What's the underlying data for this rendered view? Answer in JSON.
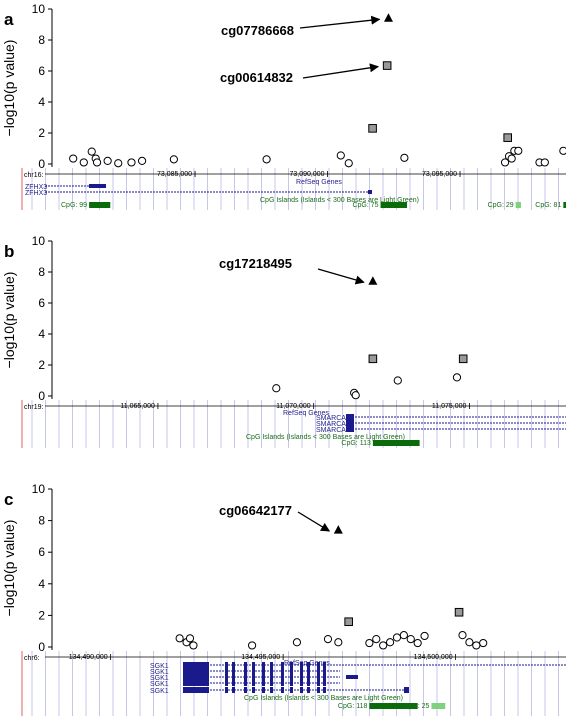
{
  "ylabel": "−log10(p value)",
  "colors": {
    "grid": "#b9b9e6",
    "gene": "#1a1a8c",
    "cpg_dark": "#0a6b0a",
    "cpg_light": "#7fd17f",
    "text_blue": "#23238c",
    "text_green": "#1a6b1a",
    "red_line": "#e06060"
  },
  "chart_data": [
    {
      "panel": "a",
      "type": "scatter",
      "ylim": [
        0,
        10
      ],
      "yticks": [
        0,
        2,
        4,
        6,
        8,
        10
      ],
      "xlim": [
        73079600,
        73099000
      ],
      "chrom": "chr16:",
      "xticks": [
        {
          "pos": 73085000,
          "label": "73,085,000"
        },
        {
          "pos": 73090000,
          "label": "73,090,000"
        },
        {
          "pos": 73095000,
          "label": "73,095,000"
        }
      ],
      "series": [
        {
          "marker": "circle",
          "points": [
            [
              73080400,
              0.35
            ],
            [
              73080800,
              0.1
            ],
            [
              73081100,
              0.8
            ],
            [
              73081250,
              0.35
            ],
            [
              73081300,
              0.1
            ],
            [
              73081700,
              0.2
            ],
            [
              73082100,
              0.05
            ],
            [
              73082600,
              0.1
            ],
            [
              73083000,
              0.2
            ],
            [
              73084200,
              0.3
            ],
            [
              73087700,
              0.3
            ],
            [
              73090500,
              0.55
            ],
            [
              73090800,
              0.05
            ],
            [
              73092900,
              0.4
            ],
            [
              73096700,
              0.1
            ],
            [
              73096850,
              0.5
            ],
            [
              73096950,
              0.35
            ],
            [
              73097050,
              0.85
            ],
            [
              73097200,
              0.85
            ],
            [
              73098000,
              0.1
            ],
            [
              73098200,
              0.1
            ],
            [
              73098900,
              0.85
            ]
          ]
        },
        {
          "marker": "square",
          "points": [
            [
              73091700,
              2.3
            ],
            [
              73092250,
              6.35
            ],
            [
              73096800,
              1.7
            ]
          ]
        },
        {
          "marker": "triangle",
          "points": [
            [
              73092300,
              9.4
            ]
          ]
        }
      ],
      "annotations": [
        {
          "label": "cg07786668",
          "target": [
            73092300,
            9.4
          ]
        },
        {
          "label": "cg00614832",
          "target": [
            73092250,
            6.35
          ]
        }
      ],
      "tracks": {
        "refseq_title": "RefSeq Genes",
        "genes": [
          "ZFHX3",
          "ZFHX3"
        ],
        "cpg_title": "CpG Islands (Islands < 300 Bases are Light Green)",
        "cpg": [
          {
            "label": "CpG: 99",
            "start": 73081000,
            "end": 73081800,
            "light": false
          },
          {
            "label": "CpG: 75",
            "start": 73092000,
            "end": 73093000,
            "light": false
          },
          {
            "label": "CpG: 29",
            "start": 73097100,
            "end": 73097300,
            "light": true
          },
          {
            "label": "CpG: 81",
            "start": 73098900,
            "end": 73099000,
            "light": false
          }
        ]
      }
    },
    {
      "panel": "b",
      "type": "scatter",
      "ylim": [
        0,
        10
      ],
      "yticks": [
        0,
        2,
        4,
        6,
        8,
        10
      ],
      "xlim": [
        11061600,
        11078100
      ],
      "chrom": "chr19:",
      "xticks": [
        {
          "pos": 11065000,
          "label": "11,065,000"
        },
        {
          "pos": 11070000,
          "label": "11,070,000"
        },
        {
          "pos": 11075000,
          "label": "11,075,000"
        }
      ],
      "series": [
        {
          "marker": "circle",
          "points": [
            [
              11068800,
              0.5
            ],
            [
              11071300,
              0.2
            ],
            [
              11071350,
              0.05
            ],
            [
              11072700,
              1.0
            ],
            [
              11074600,
              1.2
            ]
          ]
        },
        {
          "marker": "square",
          "points": [
            [
              11071900,
              2.4
            ],
            [
              11074800,
              2.4
            ]
          ]
        },
        {
          "marker": "triangle",
          "points": [
            [
              11071900,
              7.4
            ]
          ]
        }
      ],
      "annotations": [
        {
          "label": "cg17218495",
          "target": [
            11071900,
            7.4
          ]
        }
      ],
      "tracks": {
        "refseq_title": "RefSeq Genes",
        "genes": [
          "SMARCA4",
          "SMARCA4",
          "SMARCA4"
        ],
        "cpg_title": "CpG Islands (Islands < 300 Bases are Light Green)",
        "cpg": [
          {
            "label": "CpG: 113",
            "start": 11071900,
            "end": 11073400,
            "light": false
          }
        ]
      }
    },
    {
      "panel": "c",
      "type": "scatter",
      "ylim": [
        0,
        10
      ],
      "yticks": [
        0,
        2,
        4,
        6,
        8,
        10
      ],
      "xlim": [
        134488300,
        134503200
      ],
      "chrom": "chr6:",
      "xticks": [
        {
          "pos": 134490000,
          "label": "134,490,000"
        },
        {
          "pos": 134495000,
          "label": "134,495,000"
        },
        {
          "pos": 134500000,
          "label": "134,500,000"
        }
      ],
      "series": [
        {
          "marker": "circle",
          "points": [
            [
              134492000,
              0.55
            ],
            [
              134492200,
              0.3
            ],
            [
              134492300,
              0.55
            ],
            [
              134492400,
              0.1
            ],
            [
              134494100,
              0.1
            ],
            [
              134495400,
              0.3
            ],
            [
              134496300,
              0.5
            ],
            [
              134496600,
              0.3
            ],
            [
              134497500,
              0.25
            ],
            [
              134497700,
              0.5
            ],
            [
              134497900,
              0.1
            ],
            [
              134498100,
              0.3
            ],
            [
              134498300,
              0.6
            ],
            [
              134498500,
              0.75
            ],
            [
              134498700,
              0.5
            ],
            [
              134498900,
              0.25
            ],
            [
              134499100,
              0.7
            ],
            [
              134500200,
              0.75
            ],
            [
              134500400,
              0.3
            ],
            [
              134500600,
              0.1
            ],
            [
              134500800,
              0.25
            ]
          ]
        },
        {
          "marker": "square",
          "points": [
            [
              134496900,
              1.6
            ],
            [
              134500100,
              2.2
            ]
          ]
        },
        {
          "marker": "triangle",
          "points": [
            [
              134496600,
              7.4
            ]
          ]
        }
      ],
      "annotations": [
        {
          "label": "cg06642177",
          "target": [
            134496600,
            7.4
          ]
        }
      ],
      "tracks": {
        "refseq_title": "RefSeq Genes",
        "genes": [
          "SGK1",
          "SGK1",
          "SGK1",
          "SGK1",
          "SGK1"
        ],
        "cpg_title": "CpG Islands (Islands < 300 Bases are Light Green)",
        "cpg": [
          {
            "label": "CpG: 118",
            "start": 134497500,
            "end": 134498900,
            "light": false
          },
          {
            "label": "CpG: 25",
            "start": 134499300,
            "end": 134499700,
            "light": true
          }
        ]
      }
    }
  ]
}
